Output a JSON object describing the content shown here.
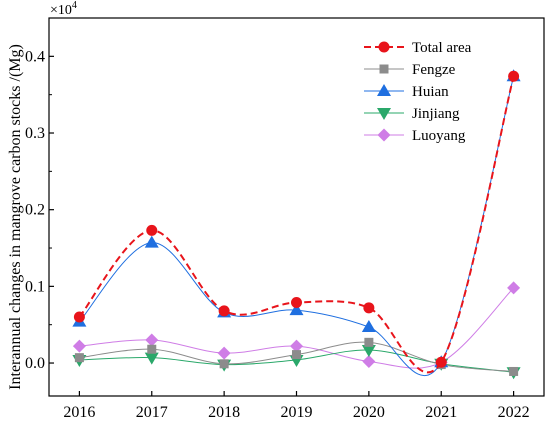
{
  "chart_data": {
    "type": "line",
    "ylabel": "Interannual changes in mangrove carbon stocks /(Mg)",
    "y_multiplier": "×10",
    "y_multiplier_exp": "4",
    "xlim": [
      2015.58,
      2022.42
    ],
    "ylim": [
      -0.043,
      0.45
    ],
    "x": [
      2016,
      2017,
      2018,
      2019,
      2020,
      2021,
      2022
    ],
    "x_ticks": [
      "2016",
      "2017",
      "2018",
      "2019",
      "2020",
      "2021",
      "2022"
    ],
    "y_ticks": [
      0.0,
      0.1,
      0.2,
      0.3,
      0.4
    ],
    "y_tick_labels": [
      "0.0",
      "0.1",
      "0.2",
      "0.3",
      "0.4"
    ],
    "grid": false,
    "legend_position": "top-right",
    "series": [
      {
        "name": "Total area",
        "color": "#e8141b",
        "marker": "circle",
        "line_style": "dashed",
        "values": [
          0.06,
          0.173,
          0.068,
          0.079,
          0.072,
          0.001,
          0.374
        ]
      },
      {
        "name": "Fengze",
        "color": "#8c8c8c",
        "marker": "square",
        "line_style": "solid",
        "values": [
          0.007,
          0.018,
          -0.001,
          0.011,
          0.027,
          -0.002,
          -0.011
        ]
      },
      {
        "name": "Huian",
        "color": "#1f6fe0",
        "marker": "triangle-up",
        "line_style": "solid",
        "values": [
          0.054,
          0.157,
          0.066,
          0.069,
          0.047,
          0.001,
          0.374
        ]
      },
      {
        "name": "Jinjiang",
        "color": "#2aa86a",
        "marker": "triangle-down",
        "line_style": "solid",
        "values": [
          0.004,
          0.007,
          -0.002,
          0.004,
          0.017,
          -0.001,
          -0.012
        ]
      },
      {
        "name": "Luoyang",
        "color": "#cf7de6",
        "marker": "diamond",
        "line_style": "solid",
        "values": [
          0.022,
          0.03,
          0.013,
          0.022,
          0.002,
          0.001,
          0.098
        ]
      }
    ]
  }
}
